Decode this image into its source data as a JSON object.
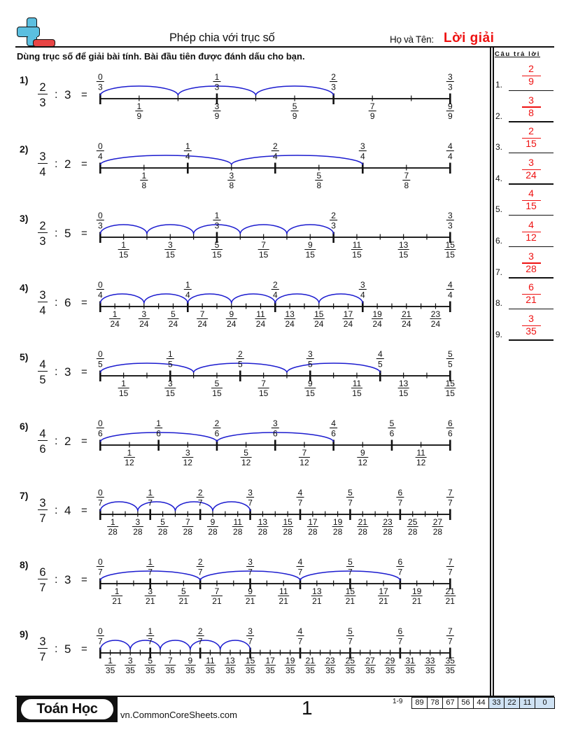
{
  "header": {
    "title": "Phép chia với trục số",
    "name_label": "Họ và Tên:",
    "name_value": "Lời giải"
  },
  "logo": {
    "icon": "plus-minus-logo-icon"
  },
  "instructions": "Dùng trục số để giải bài tính. Bài đầu tiên được đánh dấu cho bạn.",
  "answer_panel": {
    "heading": "Câu trả lời",
    "answers": [
      {
        "label": "1.",
        "num": "2",
        "den": "9"
      },
      {
        "label": "2.",
        "num": "3",
        "den": "8"
      },
      {
        "label": "3.",
        "num": "2",
        "den": "15"
      },
      {
        "label": "4.",
        "num": "3",
        "den": "24"
      },
      {
        "label": "5.",
        "num": "4",
        "den": "15"
      },
      {
        "label": "6.",
        "num": "4",
        "den": "12"
      },
      {
        "label": "7.",
        "num": "3",
        "den": "28"
      },
      {
        "label": "8.",
        "num": "6",
        "den": "21"
      },
      {
        "label": "9.",
        "num": "3",
        "den": "35"
      }
    ]
  },
  "problems": [
    {
      "label": "1)",
      "dividend": {
        "num": "2",
        "den": "3"
      },
      "operator": ":",
      "divisor": "3",
      "equals": "=",
      "number_line": {
        "top_denominator": 3,
        "subdivisions": 9,
        "arc_step": 2,
        "arc_count": 3,
        "top_labels": [
          [
            "0",
            "3"
          ],
          [
            "1",
            "3"
          ],
          [
            "2",
            "3"
          ],
          [
            "3",
            "3"
          ]
        ],
        "bottom_labels": [
          [
            "1",
            "9"
          ],
          [
            "3",
            "9"
          ],
          [
            "5",
            "9"
          ],
          [
            "7",
            "9"
          ],
          [
            "9",
            "9"
          ]
        ]
      }
    },
    {
      "label": "2)",
      "dividend": {
        "num": "3",
        "den": "4"
      },
      "operator": ":",
      "divisor": "2",
      "equals": "=",
      "number_line": {
        "top_denominator": 4,
        "subdivisions": 8,
        "arc_step": 3,
        "arc_count": 2,
        "top_labels": [
          [
            "0",
            "4"
          ],
          [
            "1",
            "4"
          ],
          [
            "2",
            "4"
          ],
          [
            "3",
            "4"
          ],
          [
            "4",
            "4"
          ]
        ],
        "bottom_labels": [
          [
            "1",
            "8"
          ],
          [
            "3",
            "8"
          ],
          [
            "5",
            "8"
          ],
          [
            "7",
            "8"
          ]
        ]
      }
    },
    {
      "label": "3)",
      "dividend": {
        "num": "2",
        "den": "3"
      },
      "operator": ":",
      "divisor": "5",
      "equals": "=",
      "number_line": {
        "top_denominator": 3,
        "subdivisions": 15,
        "arc_step": 2,
        "arc_count": 5,
        "top_labels": [
          [
            "0",
            "3"
          ],
          [
            "1",
            "3"
          ],
          [
            "2",
            "3"
          ],
          [
            "3",
            "3"
          ]
        ],
        "bottom_labels": [
          [
            "1",
            "15"
          ],
          [
            "3",
            "15"
          ],
          [
            "5",
            "15"
          ],
          [
            "7",
            "15"
          ],
          [
            "9",
            "15"
          ],
          [
            "11",
            "15"
          ],
          [
            "13",
            "15"
          ],
          [
            "15",
            "15"
          ]
        ]
      }
    },
    {
      "label": "4)",
      "dividend": {
        "num": "3",
        "den": "4"
      },
      "operator": ":",
      "divisor": "6",
      "equals": "=",
      "number_line": {
        "top_denominator": 4,
        "subdivisions": 24,
        "arc_step": 3,
        "arc_count": 6,
        "top_labels": [
          [
            "0",
            "4"
          ],
          [
            "1",
            "4"
          ],
          [
            "2",
            "4"
          ],
          [
            "3",
            "4"
          ],
          [
            "4",
            "4"
          ]
        ],
        "bottom_labels": [
          [
            "1",
            "24"
          ],
          [
            "3",
            "24"
          ],
          [
            "5",
            "24"
          ],
          [
            "7",
            "24"
          ],
          [
            "9",
            "24"
          ],
          [
            "11",
            "24"
          ],
          [
            "13",
            "24"
          ],
          [
            "15",
            "24"
          ],
          [
            "17",
            "24"
          ],
          [
            "19",
            "24"
          ],
          [
            "21",
            "24"
          ],
          [
            "23",
            "24"
          ]
        ]
      }
    },
    {
      "label": "5)",
      "dividend": {
        "num": "4",
        "den": "5"
      },
      "operator": ":",
      "divisor": "3",
      "equals": "=",
      "number_line": {
        "top_denominator": 5,
        "subdivisions": 15,
        "arc_step": 4,
        "arc_count": 3,
        "top_labels": [
          [
            "0",
            "5"
          ],
          [
            "1",
            "5"
          ],
          [
            "2",
            "5"
          ],
          [
            "3",
            "5"
          ],
          [
            "4",
            "5"
          ],
          [
            "5",
            "5"
          ]
        ],
        "bottom_labels": [
          [
            "1",
            "15"
          ],
          [
            "3",
            "15"
          ],
          [
            "5",
            "15"
          ],
          [
            "7",
            "15"
          ],
          [
            "9",
            "15"
          ],
          [
            "11",
            "15"
          ],
          [
            "13",
            "15"
          ],
          [
            "15",
            "15"
          ]
        ]
      }
    },
    {
      "label": "6)",
      "dividend": {
        "num": "4",
        "den": "6"
      },
      "operator": ":",
      "divisor": "2",
      "equals": "=",
      "number_line": {
        "top_denominator": 6,
        "subdivisions": 12,
        "arc_step": 4,
        "arc_count": 2,
        "top_labels": [
          [
            "0",
            "6"
          ],
          [
            "1",
            "6"
          ],
          [
            "2",
            "6"
          ],
          [
            "3",
            "6"
          ],
          [
            "4",
            "6"
          ],
          [
            "5",
            "6"
          ],
          [
            "6",
            "6"
          ]
        ],
        "bottom_labels": [
          [
            "1",
            "12"
          ],
          [
            "3",
            "12"
          ],
          [
            "5",
            "12"
          ],
          [
            "7",
            "12"
          ],
          [
            "9",
            "12"
          ],
          [
            "11",
            "12"
          ]
        ]
      }
    },
    {
      "label": "7)",
      "dividend": {
        "num": "3",
        "den": "7"
      },
      "operator": ":",
      "divisor": "4",
      "equals": "=",
      "number_line": {
        "top_denominator": 7,
        "subdivisions": 28,
        "arc_step": 3,
        "arc_count": 4,
        "top_labels": [
          [
            "0",
            "7"
          ],
          [
            "1",
            "7"
          ],
          [
            "2",
            "7"
          ],
          [
            "3",
            "7"
          ],
          [
            "4",
            "7"
          ],
          [
            "5",
            "7"
          ],
          [
            "6",
            "7"
          ],
          [
            "7",
            "7"
          ]
        ],
        "bottom_labels": [
          [
            "1",
            "28"
          ],
          [
            "3",
            "28"
          ],
          [
            "5",
            "28"
          ],
          [
            "7",
            "28"
          ],
          [
            "9",
            "28"
          ],
          [
            "11",
            "28"
          ],
          [
            "13",
            "28"
          ],
          [
            "15",
            "28"
          ],
          [
            "17",
            "28"
          ],
          [
            "19",
            "28"
          ],
          [
            "21",
            "28"
          ],
          [
            "23",
            "28"
          ],
          [
            "25",
            "28"
          ],
          [
            "27",
            "28"
          ]
        ]
      }
    },
    {
      "label": "8)",
      "dividend": {
        "num": "6",
        "den": "7"
      },
      "operator": ":",
      "divisor": "3",
      "equals": "=",
      "number_line": {
        "top_denominator": 7,
        "subdivisions": 21,
        "arc_step": 6,
        "arc_count": 3,
        "top_labels": [
          [
            "0",
            "7"
          ],
          [
            "1",
            "7"
          ],
          [
            "2",
            "7"
          ],
          [
            "3",
            "7"
          ],
          [
            "4",
            "7"
          ],
          [
            "5",
            "7"
          ],
          [
            "6",
            "7"
          ],
          [
            "7",
            "7"
          ]
        ],
        "bottom_labels": [
          [
            "1",
            "21"
          ],
          [
            "3",
            "21"
          ],
          [
            "5",
            "21"
          ],
          [
            "7",
            "21"
          ],
          [
            "9",
            "21"
          ],
          [
            "11",
            "21"
          ],
          [
            "13",
            "21"
          ],
          [
            "15",
            "21"
          ],
          [
            "17",
            "21"
          ],
          [
            "19",
            "21"
          ],
          [
            "21",
            "21"
          ]
        ]
      }
    },
    {
      "label": "9)",
      "dividend": {
        "num": "3",
        "den": "7"
      },
      "operator": ":",
      "divisor": "5",
      "equals": "=",
      "number_line": {
        "top_denominator": 7,
        "subdivisions": 35,
        "arc_step": 3,
        "arc_count": 5,
        "top_labels": [
          [
            "0",
            "7"
          ],
          [
            "1",
            "7"
          ],
          [
            "2",
            "7"
          ],
          [
            "3",
            "7"
          ],
          [
            "4",
            "7"
          ],
          [
            "5",
            "7"
          ],
          [
            "6",
            "7"
          ],
          [
            "7",
            "7"
          ]
        ],
        "bottom_labels": [
          [
            "1",
            "35"
          ],
          [
            "3",
            "35"
          ],
          [
            "5",
            "35"
          ],
          [
            "7",
            "35"
          ],
          [
            "9",
            "35"
          ],
          [
            "11",
            "35"
          ],
          [
            "13",
            "35"
          ],
          [
            "15",
            "35"
          ],
          [
            "17",
            "35"
          ],
          [
            "19",
            "35"
          ],
          [
            "21",
            "35"
          ],
          [
            "23",
            "35"
          ],
          [
            "25",
            "35"
          ],
          [
            "27",
            "35"
          ],
          [
            "29",
            "35"
          ],
          [
            "31",
            "35"
          ],
          [
            "33",
            "35"
          ],
          [
            "35",
            "35"
          ]
        ]
      }
    }
  ],
  "footer": {
    "brand": "Toán Học",
    "site": "vn.CommonCoreSheets.com",
    "page": "1",
    "score_range": "1-9",
    "scores": [
      {
        "value": "89",
        "highlight": false
      },
      {
        "value": "78",
        "highlight": false
      },
      {
        "value": "67",
        "highlight": false
      },
      {
        "value": "56",
        "highlight": false
      },
      {
        "value": "44",
        "highlight": false
      },
      {
        "value": "33",
        "highlight": true
      },
      {
        "value": "22",
        "highlight": true
      },
      {
        "value": "11",
        "highlight": true
      },
      {
        "value": "0",
        "highlight": true
      }
    ]
  },
  "colors": {
    "answer": "#ee1111",
    "arc": "#1c1ccf",
    "line": "#222222",
    "score_highlight": "#cfe2f3",
    "logo_blue": "#5bbfe0",
    "logo_red": "#e84545"
  }
}
